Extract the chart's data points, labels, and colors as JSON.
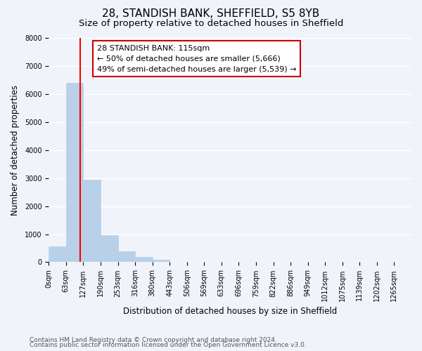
{
  "title": "28, STANDISH BANK, SHEFFIELD, S5 8YB",
  "subtitle": "Size of property relative to detached houses in Sheffield",
  "xlabel": "Distribution of detached houses by size in Sheffield",
  "ylabel": "Number of detached properties",
  "bar_values": [
    560,
    6400,
    2950,
    975,
    390,
    175,
    95,
    0,
    0,
    0,
    0,
    0,
    0,
    0,
    0,
    0,
    0,
    0,
    0,
    0
  ],
  "bin_labels": [
    "0sqm",
    "63sqm",
    "127sqm",
    "190sqm",
    "253sqm",
    "316sqm",
    "380sqm",
    "443sqm",
    "506sqm",
    "569sqm",
    "633sqm",
    "696sqm",
    "759sqm",
    "822sqm",
    "886sqm",
    "949sqm",
    "1012sqm",
    "1075sqm",
    "1139sqm",
    "1202sqm"
  ],
  "all_labels": [
    "0sqm",
    "63sqm",
    "127sqm",
    "190sqm",
    "253sqm",
    "316sqm",
    "380sqm",
    "443sqm",
    "506sqm",
    "569sqm",
    "633sqm",
    "696sqm",
    "759sqm",
    "822sqm",
    "886sqm",
    "949sqm",
    "1012sqm",
    "1075sqm",
    "1139sqm",
    "1202sqm",
    "1265sqm"
  ],
  "bar_color": "#b8d0e8",
  "bar_edge_color": "#b8d0e8",
  "annotation_title": "28 STANDISH BANK: 115sqm",
  "annotation_line1": "← 50% of detached houses are smaller (5,666)",
  "annotation_line2": "49% of semi-detached houses are larger (5,539) →",
  "ylim": [
    0,
    8000
  ],
  "yticks": [
    0,
    1000,
    2000,
    3000,
    4000,
    5000,
    6000,
    7000,
    8000
  ],
  "footnote1": "Contains HM Land Registry data © Crown copyright and database right 2024.",
  "footnote2": "Contains public sector information licensed under the Open Government Licence v3.0.",
  "background_color": "#f0f4fa",
  "plot_background": "#f0f4fa",
  "grid_color": "#ffffff",
  "title_fontsize": 11,
  "subtitle_fontsize": 9.5,
  "axis_label_fontsize": 8.5,
  "tick_fontsize": 7,
  "annotation_fontsize": 8,
  "footnote_fontsize": 6.5
}
